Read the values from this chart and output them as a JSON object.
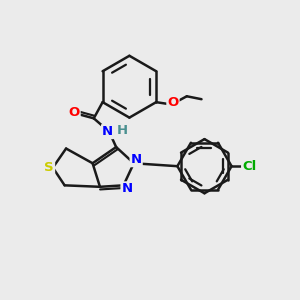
{
  "background_color": "#ebebeb",
  "bond_color": "#1a1a1a",
  "bond_width": 1.8,
  "atom_labels": {
    "O_carbonyl": {
      "text": "O",
      "color": "#ff0000",
      "fontsize": 9.5
    },
    "N_amide": {
      "text": "N",
      "color": "#0000ff",
      "fontsize": 9.5
    },
    "H_amide": {
      "text": "H",
      "color": "#4a9090",
      "fontsize": 9.5
    },
    "N1_pyrazole": {
      "text": "N",
      "color": "#0000ff",
      "fontsize": 9.5
    },
    "N2_pyrazole": {
      "text": "N",
      "color": "#0000ff",
      "fontsize": 9.5
    },
    "S_thieno": {
      "text": "S",
      "color": "#cccc00",
      "fontsize": 9.5
    },
    "O_ethoxy": {
      "text": "O",
      "color": "#ff0000",
      "fontsize": 9.5
    },
    "Cl": {
      "text": "Cl",
      "color": "#00aa00",
      "fontsize": 9.5
    }
  },
  "figsize": [
    3.0,
    3.0
  ],
  "dpi": 100
}
